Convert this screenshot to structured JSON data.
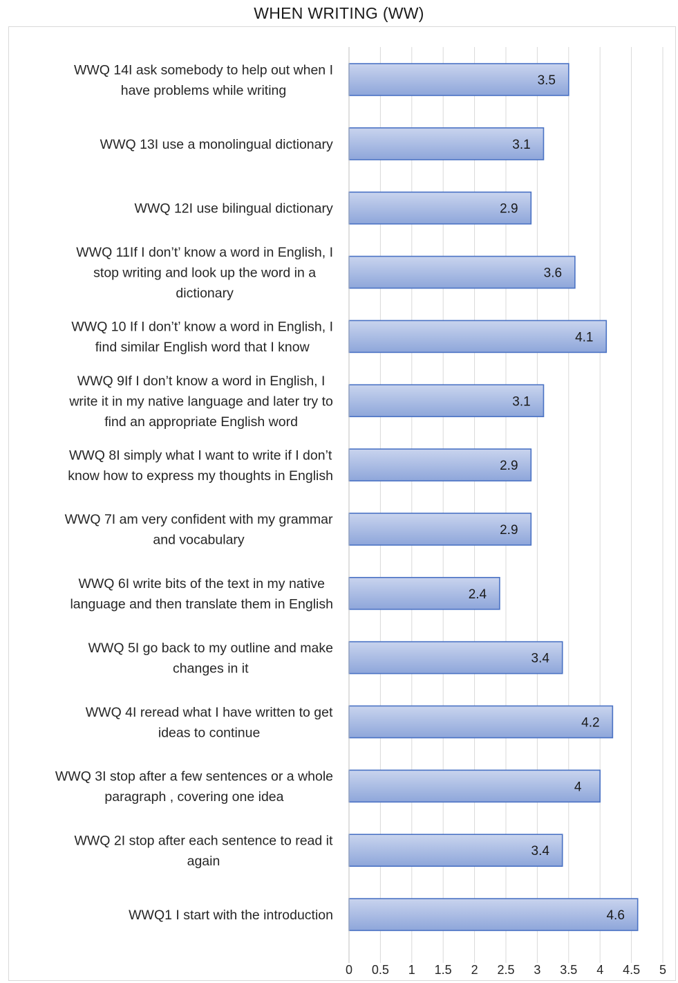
{
  "chart_data": {
    "type": "bar",
    "orientation": "horizontal",
    "title": "WHEN WRITING (WW)",
    "categories": [
      [
        "WWQ 14I ask somebody to help out when I",
        "have problems while writing"
      ],
      [
        "WWQ 13I use a monolingual dictionary"
      ],
      [
        "WWQ 12I use bilingual dictionary"
      ],
      [
        "WWQ 11If I don’t’ know a word in English, I",
        "stop writing and look up the word in a",
        "dictionary"
      ],
      [
        "WWQ 10 If I don’t’ know a word in English, I",
        "find similar English word that I know"
      ],
      [
        "WWQ 9If I don’t know a word in English, I",
        "write it in my native language and later try to",
        "find an appropriate English word"
      ],
      [
        "WWQ 8I simply what I want to write if I don’t",
        "know how to express my thoughts in English"
      ],
      [
        "WWQ 7I am very confident with my grammar",
        "and vocabulary"
      ],
      [
        "WWQ 6I write bits of the text in my native",
        "language and then translate them in English"
      ],
      [
        "WWQ 5I go back to my outline and make",
        "changes in it"
      ],
      [
        "WWQ 4I reread what I have written to get",
        "ideas to continue"
      ],
      [
        "WWQ 3I stop after a few sentences or a whole",
        "paragraph , covering one idea"
      ],
      [
        "WWQ 2I stop after each sentence to read it",
        "again"
      ],
      [
        "WWQ1 I start with the introduction"
      ]
    ],
    "values": [
      3.5,
      3.1,
      2.9,
      3.6,
      4.1,
      3.1,
      2.9,
      2.9,
      2.4,
      3.4,
      4.2,
      4,
      3.4,
      4.6
    ],
    "value_labels": [
      "3.5",
      "3.1",
      "2.9",
      "3.6",
      "4.1",
      "3.1",
      "2.9",
      "2.9",
      "2.4",
      "3.4",
      "4.2",
      "4",
      "3.4",
      "4.6"
    ],
    "xlim": [
      0,
      5
    ],
    "xticks": [
      "0",
      "0.5",
      "1",
      "1.5",
      "2",
      "2.5",
      "3",
      "3.5",
      "4",
      "4.5",
      "5"
    ],
    "grid": true,
    "legend": "none",
    "colors": {
      "bar_top": "#c9d4ee",
      "bar_bottom": "#8ea6da",
      "bar_border": "#4a72c4",
      "grid": "#d9d9d9",
      "text": "#262626"
    }
  }
}
